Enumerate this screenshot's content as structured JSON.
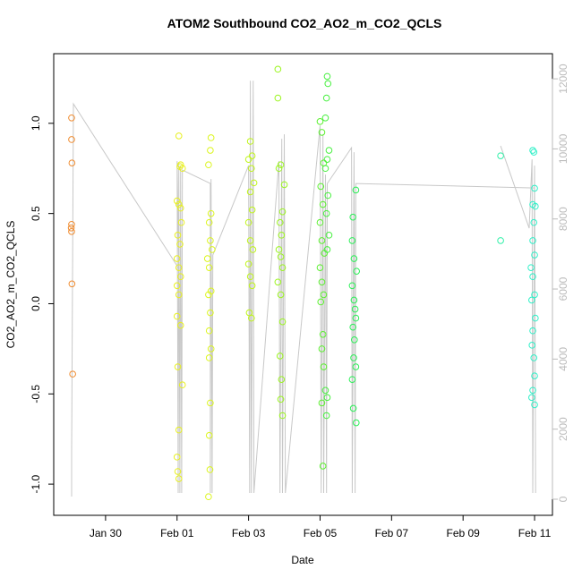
{
  "chart_data": {
    "type": "scatter",
    "title": "ATOM2 Southbound CO2_AO2_m_CO2_QCLS",
    "x_label": "Date",
    "y_label": "CO2_AO2_m_CO2_QCLS",
    "xlim": [
      28.55,
      42.5
    ],
    "ylim": [
      -1.173,
      1.386
    ],
    "y2lim": [
      -460,
      12718
    ],
    "xticks": [
      {
        "value": 30,
        "label": "Jan 30"
      },
      {
        "value": 32,
        "label": "Feb 01"
      },
      {
        "value": 34,
        "label": "Feb 03"
      },
      {
        "value": 36,
        "label": "Feb 05"
      },
      {
        "value": 38,
        "label": "Feb 07"
      },
      {
        "value": 40,
        "label": "Feb 09"
      },
      {
        "value": 42,
        "label": "Feb 11"
      }
    ],
    "yticks": [
      {
        "value": -1,
        "label": "-1.0"
      },
      {
        "value": -0.5,
        "label": "-0.5"
      },
      {
        "value": 0,
        "label": "0.0"
      },
      {
        "value": 0.5,
        "label": "0.5"
      },
      {
        "value": 1,
        "label": "1.0"
      }
    ],
    "y2ticks": [
      0,
      2000,
      4000,
      6000,
      8000,
      10000,
      12000
    ],
    "series": [
      {
        "type": "line",
        "axis": "y2",
        "color": "#c8c8c8",
        "x": [
          29.05,
          29.05,
          29.1,
          32.05,
          32.0,
          32.03,
          32.05,
          32.08,
          32.1,
          32.13,
          32.15,
          32.93,
          32.93,
          32.95,
          32.98,
          33.0,
          34.0,
          34.03,
          34.05,
          34.08,
          34.13,
          34.15,
          34.85,
          34.88,
          34.93,
          34.95,
          35.0,
          35.03,
          36.0,
          36.03,
          36.08,
          36.1,
          36.15,
          36.18,
          36.2,
          36.88,
          36.9,
          36.95,
          36.98,
          37.0,
          42.0,
          null,
          41.05,
          41.85,
          41.93,
          41.95,
          42.0,
          42.03
        ],
        "values": [
          77,
          1353,
          11284,
          6587,
          9650,
          179,
          9600,
          179,
          9523,
          179,
          9395,
          9012,
          179,
          9140,
          179,
          6970,
          9523,
          179,
          11948,
          179,
          11948,
          179,
          9650,
          179,
          10288,
          179,
          10416,
          179,
          10671,
          179,
          10416,
          179,
          9267,
          179,
          9012,
          10033,
          179,
          9906,
          179,
          9012,
          8884,
          null,
          10084,
          7735,
          9701,
          179,
          9523,
          179
        ]
      },
      {
        "color": "#f08c30",
        "x": [
          29.05,
          29.05,
          29.06,
          29.05,
          29.04,
          29.05,
          29.06,
          29.08
        ],
        "values": [
          1.03,
          0.91,
          0.78,
          0.44,
          0.42,
          0.4,
          0.11,
          -0.39
        ]
      },
      {
        "color": "#e8f020",
        "x": [
          32.05,
          32.1,
          32.08,
          32.15,
          32.0,
          32.05,
          32.1,
          32.12,
          32.02,
          32.08,
          32.0,
          32.05,
          32.1,
          32.0,
          32.05,
          32.0,
          32.1,
          32.02,
          32.15,
          32.05,
          32.0,
          32.02,
          32.05
        ],
        "values": [
          0.93,
          0.77,
          0.76,
          0.75,
          0.57,
          0.55,
          0.53,
          0.45,
          0.38,
          0.33,
          0.25,
          0.2,
          0.15,
          0.1,
          0.05,
          -0.07,
          -0.12,
          -0.35,
          -0.45,
          -0.7,
          -0.85,
          -0.93,
          -0.97
        ]
      },
      {
        "color": "#dcf51e",
        "x": [
          32.95,
          32.93,
          32.88,
          32.95,
          32.9,
          32.93,
          32.98,
          32.85,
          32.9,
          32.95,
          32.88,
          32.93,
          32.9,
          32.95,
          32.9,
          32.93,
          32.9,
          32.92,
          32.88
        ],
        "values": [
          0.92,
          0.85,
          0.77,
          0.5,
          0.45,
          0.35,
          0.3,
          0.25,
          0.2,
          0.07,
          0.05,
          -0.05,
          -0.15,
          -0.25,
          -0.3,
          -0.55,
          -0.73,
          -0.92,
          -1.07
        ]
      },
      {
        "color": "#c0f51a",
        "x": [
          34.05,
          34.1,
          34.0,
          34.08,
          34.15,
          34.05,
          34.1,
          34.0,
          34.05,
          34.12,
          34.0,
          34.05,
          34.1,
          34.02,
          34.08
        ],
        "values": [
          0.9,
          0.82,
          0.8,
          0.75,
          0.67,
          0.62,
          0.52,
          0.45,
          0.35,
          0.3,
          0.22,
          0.15,
          0.1,
          -0.05,
          -0.08
        ]
      },
      {
        "color": "#9cf520",
        "x": [
          34.9,
          34.85,
          35.0,
          34.95,
          34.88,
          34.92,
          34.85,
          34.9,
          34.95,
          34.82,
          34.9,
          34.95,
          34.88,
          34.92,
          34.9,
          34.95,
          34.82,
          34.82
        ],
        "values": [
          0.77,
          0.75,
          0.66,
          0.51,
          0.45,
          0.38,
          0.3,
          0.26,
          0.2,
          0.12,
          0.05,
          -0.1,
          -0.29,
          -0.42,
          -0.53,
          -0.62,
          1.14,
          1.3
        ]
      },
      {
        "color": "#5cf030",
        "x": [
          36.0,
          36.05,
          36.1,
          36.02,
          36.08,
          36.0,
          36.05,
          36.12,
          36.0,
          36.05,
          36.1,
          36.02,
          36.08,
          36.05,
          36.1,
          36.05,
          36.08
        ],
        "values": [
          1.01,
          0.95,
          0.78,
          0.65,
          0.55,
          0.45,
          0.35,
          0.28,
          0.2,
          0.12,
          0.05,
          0.01,
          -0.17,
          -0.25,
          -0.35,
          -0.55,
          -0.9
        ]
      },
      {
        "color": "#48f040",
        "x": [
          36.2,
          36.22,
          36.18,
          36.15,
          36.25,
          36.2,
          36.15,
          36.22,
          36.18,
          36.25,
          36.2,
          36.15,
          36.2,
          36.18
        ],
        "values": [
          1.26,
          1.22,
          1.14,
          1.03,
          0.85,
          0.8,
          0.75,
          0.6,
          0.5,
          0.38,
          0.3,
          -0.48,
          -0.52,
          -0.62
        ]
      },
      {
        "color": "#2cf058",
        "x": [
          37.0,
          36.92,
          36.9,
          36.95,
          37.02,
          36.9,
          36.95,
          36.98,
          37.0,
          36.92,
          36.96,
          36.94,
          37.0,
          36.9,
          36.93,
          37.01
        ],
        "values": [
          0.63,
          0.48,
          0.35,
          0.25,
          0.18,
          0.1,
          0.02,
          -0.03,
          -0.08,
          -0.13,
          -0.2,
          -0.3,
          -0.35,
          -0.42,
          -0.58,
          -0.66
        ]
      },
      {
        "color": "#30f0a8",
        "x": [
          41.05,
          41.05
        ],
        "values": [
          0.82,
          0.35
        ]
      },
      {
        "color": "#30f0c8",
        "x": [
          41.95,
          41.98,
          42.0,
          41.95,
          42.02,
          41.98,
          41.95,
          42.0,
          41.9,
          41.95,
          42.0,
          41.92,
          42.02,
          41.95,
          41.93,
          41.98,
          42.0,
          41.95,
          41.92,
          42.0
        ],
        "values": [
          0.85,
          0.84,
          0.64,
          0.55,
          0.54,
          0.45,
          0.35,
          0.27,
          0.2,
          0.15,
          0.05,
          0.02,
          -0.08,
          -0.15,
          -0.23,
          -0.3,
          -0.4,
          -0.48,
          -0.52,
          -0.56
        ]
      }
    ]
  }
}
